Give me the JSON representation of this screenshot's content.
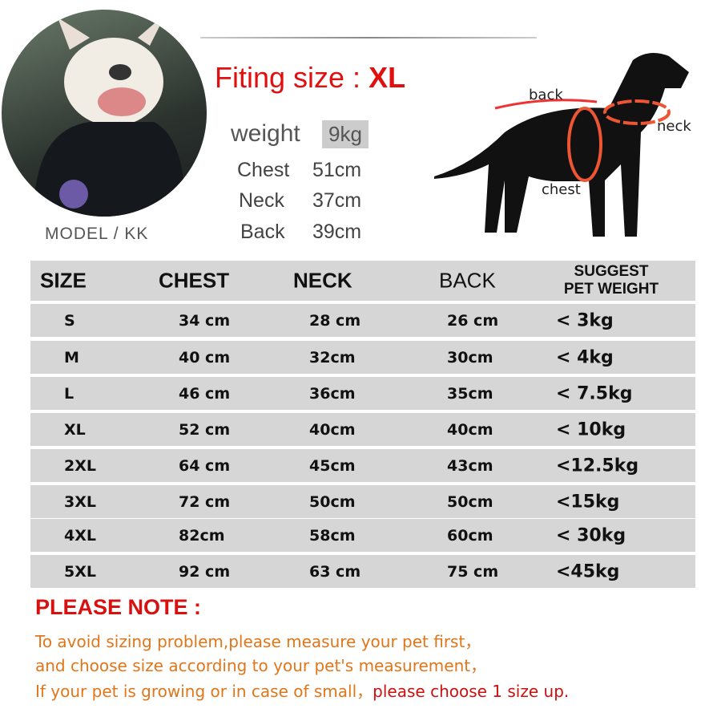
{
  "model": {
    "label": "MODEL / KK"
  },
  "fitting": {
    "label": "Fiting size :",
    "size": "XL"
  },
  "measurements": [
    {
      "label": "weight",
      "value": "9kg"
    },
    {
      "label": "Chest",
      "value": "51cm"
    },
    {
      "label": "Neck",
      "value": "37cm"
    },
    {
      "label": "Back",
      "value": "39cm"
    }
  ],
  "diagram": {
    "back": "back",
    "neck": "neck",
    "chest": "chest"
  },
  "table": {
    "headers": [
      "SIZE",
      "CHEST",
      "NECK",
      "BACK",
      "SUGGEST",
      "PET WEIGHT"
    ],
    "rows": [
      [
        "S",
        "34 cm",
        "28 cm",
        "26 cm",
        "< 3kg"
      ],
      [
        "M",
        "40 cm",
        "32cm",
        "30cm",
        "< 4kg"
      ],
      [
        "L",
        "46 cm",
        "36cm",
        "35cm",
        "< 7.5kg"
      ],
      [
        "XL",
        "52 cm",
        "40cm",
        "40cm",
        "< 10kg"
      ],
      [
        "2XL",
        "64 cm",
        "45cm",
        "43cm",
        "<12.5kg"
      ],
      [
        "3XL",
        "72 cm",
        "50cm",
        "50cm",
        "<15kg"
      ],
      [
        "4XL",
        "82cm",
        "58cm",
        "60cm",
        "< 30kg"
      ],
      [
        "5XL",
        "92 cm",
        "63 cm",
        "75 cm",
        "<45kg"
      ]
    ]
  },
  "note": {
    "title": "PLEASE NOTE :",
    "line1": "To avoid sizing problem,please measure your pet first，",
    "line2": "and choose size according to your pet's measurement，",
    "line3a": "If your pet is growing or in case of small，",
    "line3b": "please choose 1 size up."
  },
  "colors": {
    "red": "#e01010",
    "orange": "#e0761a",
    "row": "#d6d6d6"
  }
}
